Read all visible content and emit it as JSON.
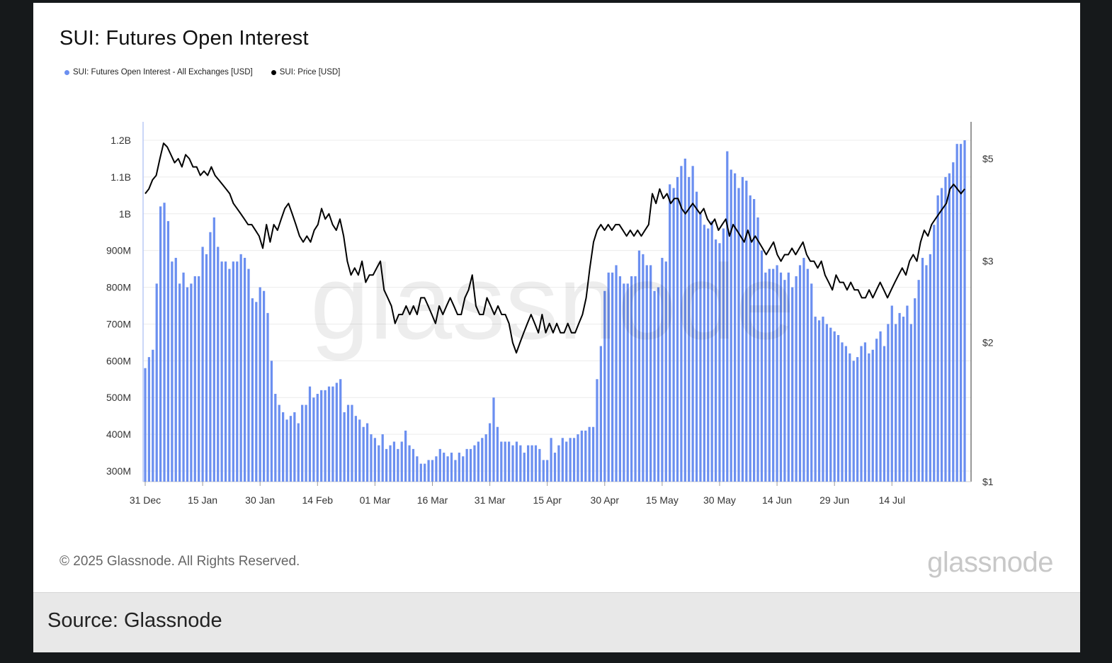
{
  "title": "SUI: Futures Open Interest",
  "copyright": "© 2025 Glassnode. All Rights Reserved.",
  "logo_text": "glassnode",
  "watermark": "glassnode",
  "caption": "Source: Glassnode",
  "colors": {
    "background": "#16191b",
    "card": "#ffffff",
    "bars": "#6b8ff0",
    "price_line": "#000000",
    "caption_bg": "#e8e8e8"
  },
  "chart_data": {
    "type": "bar",
    "title": "SUI: Futures Open Interest",
    "legend": [
      {
        "label": "SUI: Futures Open Interest - All Exchanges [USD]",
        "color": "#6b8ff0"
      },
      {
        "label": "SUI: Price [USD]",
        "color": "#000000"
      }
    ],
    "x_ticks": [
      "31 Dec",
      "15 Jan",
      "30 Jan",
      "14 Feb",
      "01 Mar",
      "16 Mar",
      "31 Mar",
      "15 Apr",
      "30 Apr",
      "15 May",
      "30 May",
      "14 Jun",
      "29 Jun",
      "14 Jul"
    ],
    "y_left": {
      "ticks": [
        "300M",
        "400M",
        "500M",
        "600M",
        "700M",
        "800M",
        "900M",
        "1B",
        "1.1B",
        "1.2B"
      ],
      "min_m": 270,
      "max_m": 1250
    },
    "y_right": {
      "ticks": [
        "$1",
        "$2",
        "$3",
        "$5"
      ],
      "scale": "log",
      "min": 1,
      "max": 5.6
    },
    "x_start": "2024-12-31",
    "series": [
      {
        "name": "SUI: Futures Open Interest - All Exchanges [USD]",
        "type": "bar",
        "unit": "USD millions",
        "values": [
          580,
          610,
          630,
          810,
          1020,
          1030,
          980,
          870,
          880,
          810,
          840,
          800,
          810,
          830,
          830,
          910,
          890,
          950,
          990,
          910,
          870,
          870,
          850,
          870,
          870,
          890,
          880,
          850,
          770,
          760,
          800,
          790,
          730,
          600,
          510,
          480,
          460,
          440,
          450,
          460,
          430,
          480,
          480,
          530,
          500,
          510,
          520,
          520,
          530,
          530,
          540,
          550,
          460,
          480,
          480,
          450,
          440,
          420,
          430,
          400,
          390,
          370,
          400,
          360,
          370,
          380,
          360,
          380,
          410,
          370,
          360,
          340,
          320,
          320,
          330,
          330,
          340,
          360,
          350,
          340,
          350,
          330,
          350,
          340,
          360,
          360,
          370,
          380,
          390,
          400,
          430,
          500,
          420,
          380,
          380,
          380,
          370,
          380,
          370,
          350,
          370,
          370,
          370,
          360,
          330,
          330,
          390,
          350,
          370,
          390,
          380,
          390,
          390,
          400,
          410,
          410,
          420,
          420,
          550,
          640,
          790,
          840,
          840,
          860,
          830,
          810,
          810,
          830,
          830,
          900,
          890,
          860,
          860,
          790,
          800,
          880,
          870,
          1080,
          1070,
          1100,
          1130,
          1150,
          1100,
          1130,
          1060,
          1000,
          970,
          960,
          980,
          930,
          920,
          960,
          1170,
          1120,
          1110,
          1070,
          1100,
          1090,
          1050,
          1040,
          990,
          900,
          840,
          850,
          850,
          860,
          840,
          820,
          840,
          800,
          830,
          860,
          880,
          850,
          810,
          720,
          710,
          720,
          700,
          690,
          680,
          670,
          650,
          640,
          620,
          600,
          610,
          640,
          650,
          620,
          630,
          660,
          680,
          640,
          700,
          750,
          700,
          730,
          720,
          750,
          700,
          770,
          820,
          880,
          860,
          890,
          970,
          1050,
          1070,
          1100,
          1110,
          1140,
          1190,
          1190,
          1200
        ]
      },
      {
        "name": "SUI: Price [USD]",
        "type": "line",
        "unit": "USD",
        "values": [
          4.2,
          4.3,
          4.5,
          4.6,
          5.0,
          5.4,
          5.3,
          5.1,
          4.9,
          5.0,
          4.8,
          5.1,
          5.0,
          4.8,
          4.8,
          4.6,
          4.7,
          4.6,
          4.8,
          4.6,
          4.5,
          4.4,
          4.3,
          4.2,
          4.0,
          3.9,
          3.8,
          3.7,
          3.6,
          3.6,
          3.5,
          3.4,
          3.2,
          3.6,
          3.3,
          3.6,
          3.5,
          3.7,
          3.9,
          4.0,
          3.8,
          3.6,
          3.4,
          3.3,
          3.4,
          3.3,
          3.5,
          3.6,
          3.9,
          3.7,
          3.8,
          3.6,
          3.5,
          3.7,
          3.4,
          3.0,
          2.8,
          2.9,
          2.8,
          3.0,
          2.7,
          2.8,
          2.8,
          2.9,
          3.0,
          2.6,
          2.5,
          2.4,
          2.2,
          2.3,
          2.3,
          2.4,
          2.3,
          2.4,
          2.3,
          2.5,
          2.5,
          2.4,
          2.3,
          2.2,
          2.4,
          2.3,
          2.4,
          2.5,
          2.4,
          2.3,
          2.3,
          2.5,
          2.6,
          2.8,
          2.4,
          2.3,
          2.3,
          2.5,
          2.4,
          2.3,
          2.4,
          2.3,
          2.3,
          2.2,
          2.0,
          1.9,
          2.0,
          2.1,
          2.2,
          2.3,
          2.2,
          2.1,
          2.3,
          2.1,
          2.2,
          2.1,
          2.2,
          2.1,
          2.1,
          2.2,
          2.1,
          2.1,
          2.2,
          2.3,
          2.5,
          2.9,
          3.3,
          3.5,
          3.6,
          3.5,
          3.6,
          3.5,
          3.6,
          3.6,
          3.5,
          3.4,
          3.5,
          3.4,
          3.5,
          3.4,
          3.5,
          3.6,
          4.2,
          4.0,
          4.3,
          4.1,
          4.2,
          4.0,
          4.1,
          4.1,
          3.9,
          3.8,
          3.9,
          4.0,
          3.9,
          3.8,
          3.9,
          3.7,
          3.6,
          3.7,
          3.5,
          3.6,
          3.7,
          3.4,
          3.6,
          3.5,
          3.4,
          3.3,
          3.5,
          3.3,
          3.4,
          3.3,
          3.2,
          3.1,
          3.2,
          3.3,
          3.1,
          3.0,
          3.1,
          3.1,
          3.2,
          3.1,
          3.2,
          3.3,
          3.1,
          3.0,
          3.0,
          2.9,
          3.0,
          2.8,
          2.7,
          2.6,
          2.8,
          2.7,
          2.7,
          2.6,
          2.7,
          2.6,
          2.6,
          2.5,
          2.5,
          2.6,
          2.5,
          2.6,
          2.7,
          2.6,
          2.5,
          2.6,
          2.7,
          2.8,
          2.9,
          2.8,
          3.0,
          3.1,
          3.0,
          3.3,
          3.5,
          3.4,
          3.6,
          3.7,
          3.8,
          3.9,
          4.0,
          4.3,
          4.4,
          4.3,
          4.2,
          4.3
        ]
      }
    ],
    "grid": true,
    "legend_position": "top-left"
  }
}
